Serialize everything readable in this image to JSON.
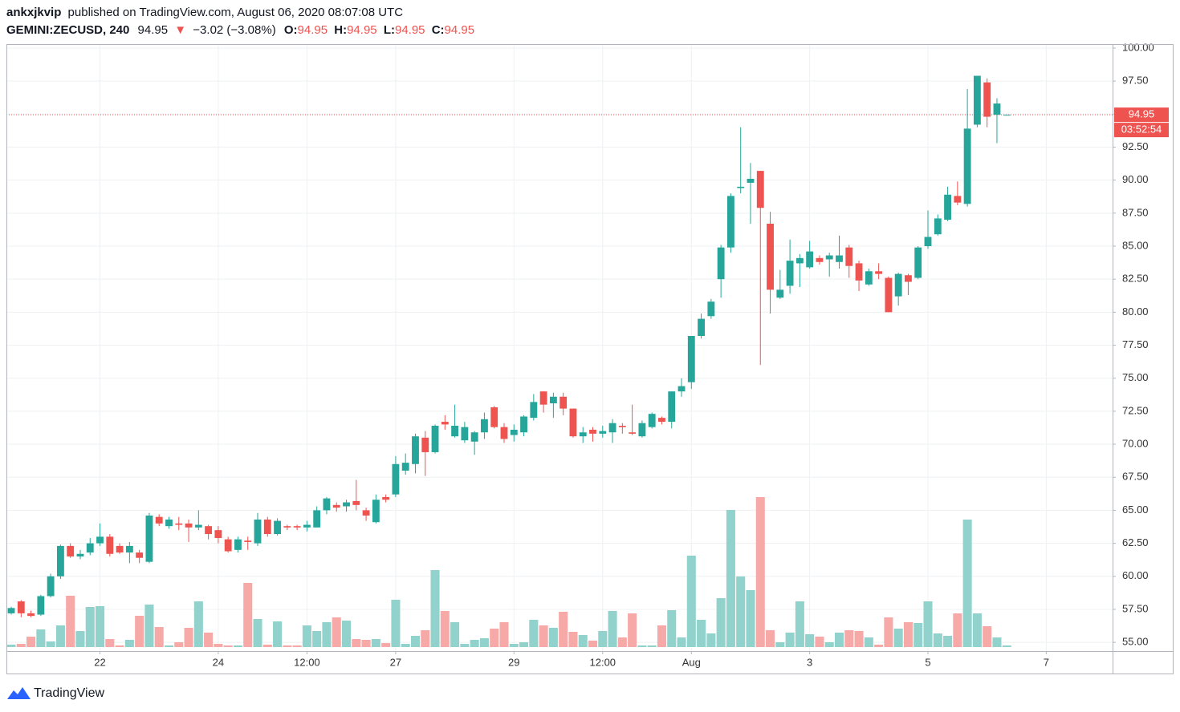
{
  "chart_data": {
    "type": "candlestick",
    "author": "ankxjkvip",
    "publish_text": "published on TradingView.com, August 06, 2020 08:07:08 UTC",
    "symbol": "GEMINI:ZECUSD, 240",
    "last_price": 94.95,
    "change_text": "−3.02 (−3.08%)",
    "ohlc_labels": [
      "O:",
      "H:",
      "L:",
      "C:"
    ],
    "ohlc_values": [
      94.95,
      94.95,
      94.95,
      94.95
    ],
    "countdown": "03:52:54",
    "brand": "TradingView",
    "up_color": "#26a69a",
    "down_color": "#ef5350",
    "volume_up_color": "#92d2cc",
    "volume_down_color": "#f7a9a7",
    "grid": true,
    "ylim": [
      54.34,
      100.3
    ],
    "yticks": [
      {
        "value": 55,
        "label": "55.00"
      },
      {
        "value": 57.5,
        "label": "57.50"
      },
      {
        "value": 60,
        "label": "60.00"
      },
      {
        "value": 62.5,
        "label": "62.50"
      },
      {
        "value": 65,
        "label": "65.00"
      },
      {
        "value": 67.5,
        "label": "67.50"
      },
      {
        "value": 70,
        "label": "70.00"
      },
      {
        "value": 72.5,
        "label": "72.50"
      },
      {
        "value": 75,
        "label": "75.00"
      },
      {
        "value": 77.5,
        "label": "77.50"
      },
      {
        "value": 80,
        "label": "80.00"
      },
      {
        "value": 82.5,
        "label": "82.50"
      },
      {
        "value": 85,
        "label": "85.00"
      },
      {
        "value": 87.5,
        "label": "87.50"
      },
      {
        "value": 90,
        "label": "90.00"
      },
      {
        "value": 92.5,
        "label": "92.50"
      },
      {
        "value": 95,
        "label": "95.00"
      },
      {
        "value": 97.5,
        "label": "97.50"
      },
      {
        "value": 100,
        "label": "100.00"
      }
    ],
    "xlim": [
      -0.49,
      111.73
    ],
    "xticks": [
      {
        "value": 9,
        "label": "22"
      },
      {
        "value": 21,
        "label": "24"
      },
      {
        "value": 30,
        "label": "12:00"
      },
      {
        "value": 39,
        "label": "27"
      },
      {
        "value": 51,
        "label": "29"
      },
      {
        "value": 60,
        "label": "12:00"
      },
      {
        "value": 69,
        "label": "Aug"
      },
      {
        "value": 81,
        "label": "3"
      },
      {
        "value": 93,
        "label": "5"
      },
      {
        "value": 105,
        "label": "7"
      }
    ],
    "volume_lim": [
      0,
      250
    ],
    "open": [
      57.2,
      58.1,
      57.2,
      57.1,
      58.5,
      60.0,
      62.3,
      61.5,
      61.8,
      62.5,
      63.0,
      62.3,
      61.8,
      61.8,
      61.1,
      64.5,
      63.8,
      64.0,
      64.0,
      63.7,
      63.8,
      63.5,
      62.8,
      62.0,
      62.7,
      62.5,
      64.3,
      63.2,
      63.8,
      63.8,
      63.7,
      63.7,
      65.0,
      65.4,
      65.3,
      65.7,
      65.0,
      64.1,
      66.0,
      66.2,
      68.0,
      68.5,
      70.5,
      69.4,
      71.7,
      70.6,
      70.3,
      70.2,
      70.9,
      72.8,
      71.3,
      70.7,
      70.9,
      72.0,
      74.0,
      73.1,
      73.6,
      72.7,
      70.6,
      71.1,
      70.8,
      70.9,
      71.4,
      70.9,
      70.6,
      71.3,
      72.0,
      71.7,
      74.0,
      74.7,
      78.2,
      79.7,
      82.5,
      84.9,
      89.4,
      89.8,
      90.7,
      86.7,
      81.1,
      82.0,
      83.7,
      83.4,
      84.1,
      84.0,
      83.8,
      84.9,
      83.7,
      82.1,
      83.1,
      82.6,
      81.2,
      82.8,
      82.6,
      85.0,
      85.9,
      87.0,
      88.8,
      88.2,
      94.2,
      97.4,
      94.95,
      94.95
    ],
    "high": [
      57.7,
      58.2,
      57.4,
      58.6,
      60.2,
      62.4,
      62.5,
      62.0,
      62.9,
      64.0,
      63.2,
      62.5,
      62.6,
      62.0,
      64.8,
      64.7,
      64.5,
      64.5,
      64.3,
      65.0,
      63.9,
      63.8,
      63.0,
      63.0,
      63.0,
      64.8,
      64.5,
      64.4,
      63.9,
      63.9,
      64.2,
      65.3,
      66.0,
      65.6,
      65.8,
      67.3,
      65.2,
      66.2,
      66.2,
      69.1,
      69.3,
      70.8,
      71.0,
      71.5,
      72.2,
      73.0,
      71.7,
      71.0,
      72.4,
      72.9,
      71.6,
      71.5,
      72.2,
      73.8,
      74.0,
      73.9,
      73.9,
      72.7,
      71.3,
      71.3,
      71.4,
      71.9,
      71.6,
      73.0,
      71.8,
      72.4,
      72.1,
      74.0,
      75.0,
      78.2,
      79.9,
      81.0,
      85.1,
      89.0,
      94.0,
      91.3,
      90.7,
      87.6,
      83.2,
      85.5,
      84.4,
      85.4,
      84.3,
      84.5,
      85.8,
      85.1,
      83.9,
      83.3,
      83.7,
      82.7,
      83.0,
      82.9,
      85.0,
      87.7,
      87.4,
      89.5,
      89.9,
      96.9,
      97.9,
      97.7,
      96.2,
      94.95
    ],
    "low": [
      57.1,
      56.9,
      56.9,
      57.0,
      58.4,
      59.8,
      61.4,
      61.3,
      61.6,
      62.3,
      61.5,
      61.7,
      61.0,
      61.0,
      61.0,
      63.8,
      63.6,
      63.5,
      62.6,
      63.5,
      62.8,
      62.5,
      61.8,
      61.8,
      62.0,
      62.3,
      63.0,
      63.1,
      63.5,
      63.5,
      63.4,
      63.7,
      64.7,
      64.9,
      64.9,
      65.0,
      64.2,
      64.0,
      65.6,
      66.0,
      67.7,
      67.8,
      67.6,
      69.3,
      71.1,
      70.5,
      70.1,
      69.2,
      70.4,
      71.2,
      70.1,
      70.2,
      70.6,
      71.8,
      72.4,
      72.0,
      72.2,
      70.5,
      70.1,
      70.2,
      70.5,
      70.1,
      70.8,
      70.7,
      70.5,
      71.2,
      71.5,
      71.2,
      73.6,
      74.2,
      78.0,
      79.5,
      81.1,
      84.5,
      89.0,
      86.7,
      76.0,
      79.9,
      81.0,
      81.4,
      81.9,
      83.3,
      83.6,
      82.7,
      83.3,
      82.6,
      81.6,
      82.0,
      82.5,
      80.0,
      80.5,
      81.3,
      82.5,
      84.8,
      85.8,
      86.9,
      88.1,
      88.0,
      94.0,
      94.0,
      92.8,
      94.95
    ],
    "close": [
      57.6,
      57.2,
      57.0,
      58.5,
      60.0,
      62.3,
      61.5,
      61.7,
      62.5,
      63.0,
      61.7,
      61.8,
      62.3,
      61.4,
      64.6,
      64.0,
      64.3,
      63.9,
      63.7,
      63.9,
      63.2,
      62.9,
      61.9,
      62.8,
      62.6,
      64.3,
      63.2,
      64.2,
      63.7,
      63.7,
      63.9,
      65.0,
      65.9,
      65.2,
      65.6,
      65.4,
      64.6,
      65.8,
      65.8,
      68.5,
      68.6,
      70.6,
      69.4,
      71.4,
      71.5,
      71.4,
      71.3,
      70.9,
      71.9,
      71.3,
      70.4,
      71.1,
      72.1,
      73.2,
      73.0,
      73.6,
      72.7,
      70.6,
      70.9,
      70.8,
      71.0,
      71.6,
      71.3,
      70.8,
      71.6,
      72.3,
      71.7,
      74.0,
      74.4,
      78.2,
      79.5,
      80.8,
      84.9,
      88.8,
      89.5,
      90.1,
      87.9,
      81.7,
      81.7,
      83.9,
      84.1,
      84.6,
      83.8,
      84.3,
      84.3,
      83.5,
      82.4,
      83.1,
      82.9,
      80.0,
      82.9,
      82.3,
      84.9,
      85.7,
      87.1,
      88.9,
      88.3,
      93.9,
      97.9,
      94.8,
      95.8,
      94.95
    ],
    "volume": [
      3,
      4,
      13,
      22,
      7,
      27,
      64,
      20,
      50,
      51,
      10,
      2,
      9,
      39,
      53,
      25,
      2,
      6,
      24,
      57,
      18,
      4,
      2,
      2,
      80,
      35,
      3,
      32,
      2,
      2,
      27,
      20,
      31,
      37,
      33,
      10,
      9,
      10,
      5,
      59,
      4,
      14,
      21,
      96,
      45,
      31,
      4,
      9,
      11,
      23,
      31,
      4,
      6,
      34,
      27,
      24,
      44,
      19,
      15,
      8,
      20,
      45,
      12,
      42,
      2,
      2,
      27,
      46,
      12,
      114,
      34,
      17,
      61,
      171,
      88,
      71,
      187,
      21,
      6,
      18,
      57,
      16,
      13,
      6,
      18,
      21,
      20,
      12,
      3,
      37,
      23,
      31,
      30,
      57,
      17,
      14,
      42,
      159,
      42,
      26,
      12,
      2
    ]
  }
}
